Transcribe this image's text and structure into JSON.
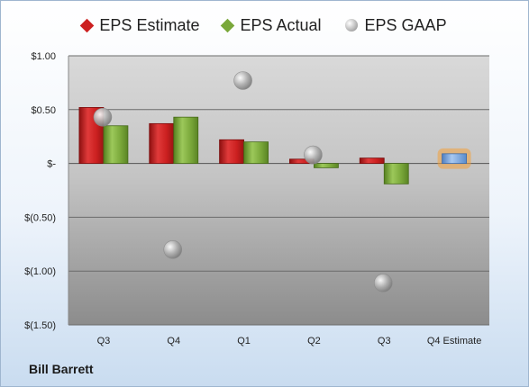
{
  "footer": {
    "company": "Bill Barrett"
  },
  "colors": {
    "estimate": "#cc2020",
    "actual": "#7aa83a",
    "gaap": "#a9a9a9",
    "future_estimate": "#6f9fd8",
    "future_estimate_glow": "#f2a13a"
  },
  "chart_data": {
    "type": "bar",
    "categories": [
      "Q3",
      "Q4",
      "Q1",
      "Q2",
      "Q3",
      "Q4 Estimate"
    ],
    "series": [
      {
        "name": "EPS Estimate",
        "values": [
          0.52,
          0.37,
          0.22,
          0.04,
          0.05,
          0.09
        ]
      },
      {
        "name": "EPS Actual",
        "values": [
          0.35,
          0.43,
          0.2,
          -0.04,
          -0.19,
          null
        ]
      },
      {
        "name": "EPS GAAP",
        "values": [
          0.43,
          -0.8,
          0.77,
          0.08,
          -1.11,
          null
        ]
      }
    ],
    "ylim": [
      -1.5,
      1.0
    ],
    "yticks": [
      1.0,
      0.5,
      0,
      -0.5,
      -1.0,
      -1.5
    ],
    "ytick_labels": [
      "$1.00",
      "$0.50",
      "$-",
      "$(0.50)",
      "$(1.00)",
      "$(1.50)"
    ],
    "legend_position": "top",
    "grid": true
  }
}
